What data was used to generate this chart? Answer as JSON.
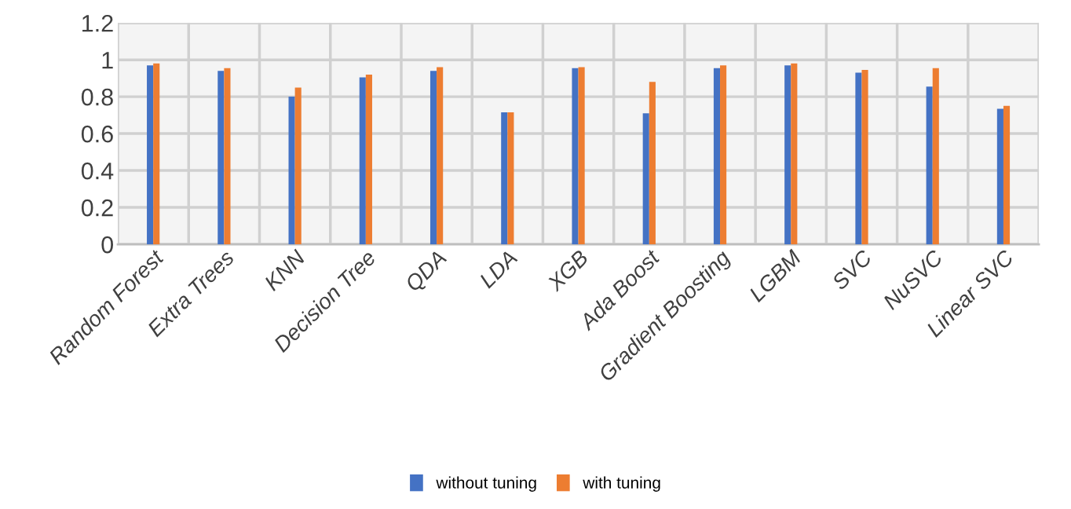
{
  "chart_data": {
    "type": "bar",
    "categories": [
      "Random Forest",
      "Extra Trees",
      "KNN",
      "Decision Tree",
      "QDA",
      "LDA",
      "XGB",
      "Ada Boost",
      "Gradient Boosting",
      "LGBM",
      "SVC",
      "NuSVC",
      "Linear SVC"
    ],
    "series": [
      {
        "name": "without tuning",
        "color": "#4472c4",
        "values": [
          0.97,
          0.94,
          0.8,
          0.905,
          0.94,
          0.715,
          0.955,
          0.71,
          0.955,
          0.97,
          0.93,
          0.855,
          0.735
        ]
      },
      {
        "name": "with tuning",
        "color": "#ed7d31",
        "values": [
          0.98,
          0.955,
          0.85,
          0.92,
          0.96,
          0.715,
          0.96,
          0.88,
          0.97,
          0.98,
          0.945,
          0.955,
          0.75
        ]
      }
    ],
    "ylim": [
      0,
      1.2
    ],
    "yticks": [
      0,
      0.2,
      0.4,
      0.6,
      0.8,
      1,
      1.2
    ],
    "grid": true,
    "legend": "bottom"
  }
}
